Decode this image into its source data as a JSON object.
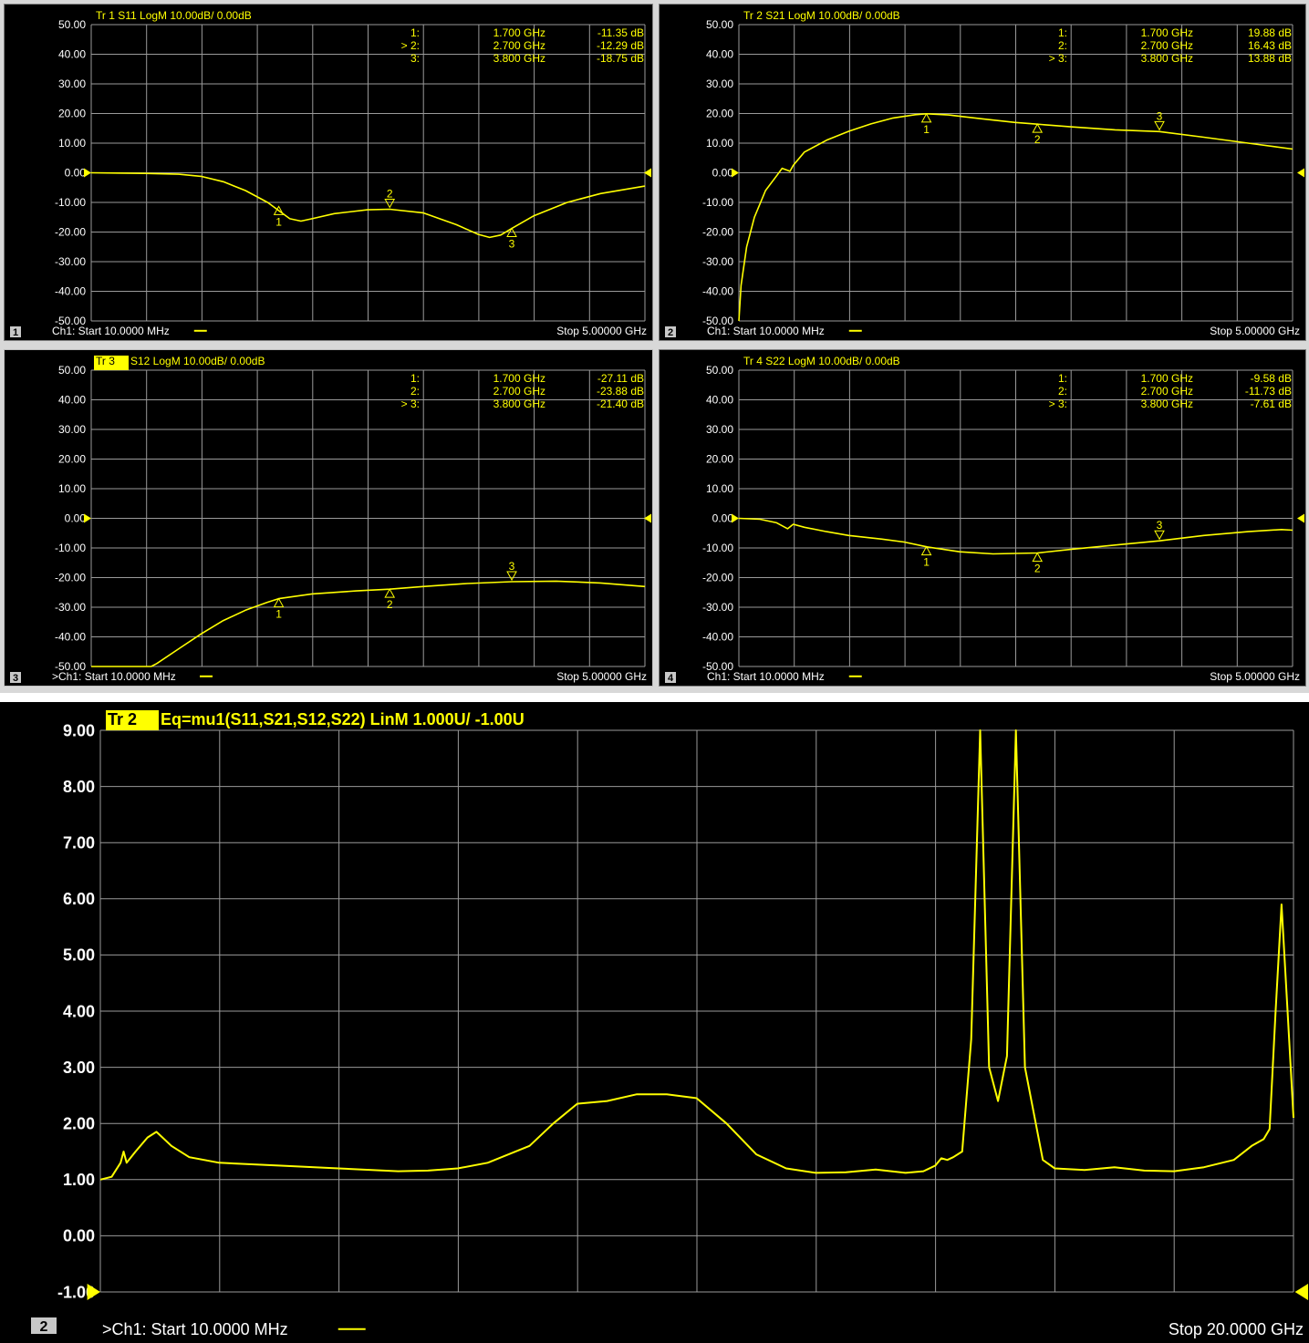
{
  "colors": {
    "trace": "#ffff00",
    "grid": "#9a9a9a",
    "background": "#000000",
    "text": "#ffffff",
    "panel_frame": "#d8d8d8"
  },
  "chart_data": [
    {
      "type": "line",
      "panel": "1",
      "title": "Tr 1  S11 LogM 10.00dB/  0.00dB",
      "footer_left": "Ch1:  Start  10.0000 MHz",
      "footer_right": "Stop  5.00000 GHz",
      "x_unit": "GHz",
      "xlim": [
        0.01,
        5.0
      ],
      "ylim": [
        -50,
        50
      ],
      "yticks": [
        "50.00",
        "40.00",
        "30.00",
        "20.00",
        "10.00",
        "0.00",
        "-10.00",
        "-20.00",
        "-30.00",
        "-40.00",
        "-50.00"
      ],
      "reference_level": 0,
      "markers": [
        {
          "label": "1:",
          "freq": "1.700 GHz",
          "value": "-11.35 dB",
          "x": 1.7,
          "y": -11.35,
          "active": false,
          "num": "1"
        },
        {
          "label": "> 2:",
          "freq": "2.700 GHz",
          "value": "-12.29 dB",
          "x": 2.7,
          "y": -12.29,
          "active": true,
          "num": "2"
        },
        {
          "label": "3:",
          "freq": "3.800 GHz",
          "value": "-18.75 dB",
          "x": 3.8,
          "y": -18.75,
          "active": false,
          "num": "3"
        }
      ],
      "x": [
        0.01,
        0.5,
        0.8,
        1.0,
        1.2,
        1.4,
        1.6,
        1.8,
        1.9,
        2.0,
        2.2,
        2.5,
        2.7,
        3.0,
        3.3,
        3.5,
        3.6,
        3.7,
        3.8,
        4.0,
        4.3,
        4.6,
        5.0
      ],
      "y": [
        0.0,
        -0.2,
        -0.5,
        -1.2,
        -3.0,
        -6.0,
        -10.0,
        -15.5,
        -16.3,
        -15.5,
        -13.8,
        -12.5,
        -12.3,
        -13.5,
        -17.5,
        -20.8,
        -21.8,
        -21.0,
        -18.8,
        -14.5,
        -10.0,
        -7.0,
        -4.5
      ]
    },
    {
      "type": "line",
      "panel": "2",
      "title": "Tr 2  S21 LogM 10.00dB/  0.00dB",
      "footer_left": "Ch1:  Start  10.0000 MHz",
      "footer_right": "Stop  5.00000 GHz",
      "x_unit": "GHz",
      "xlim": [
        0.01,
        5.0
      ],
      "ylim": [
        -50,
        50
      ],
      "yticks": [
        "50.00",
        "40.00",
        "30.00",
        "20.00",
        "10.00",
        "0.00",
        "-10.00",
        "-20.00",
        "-30.00",
        "-40.00",
        "-50.00"
      ],
      "reference_level": 0,
      "markers": [
        {
          "label": "1:",
          "freq": "1.700 GHz",
          "value": "19.88 dB",
          "x": 1.7,
          "y": 19.88,
          "active": false,
          "num": "1"
        },
        {
          "label": "2:",
          "freq": "2.700 GHz",
          "value": "16.43 dB",
          "x": 2.7,
          "y": 16.43,
          "active": false,
          "num": "2"
        },
        {
          "label": "> 3:",
          "freq": "3.800 GHz",
          "value": "13.88 dB",
          "x": 3.8,
          "y": 13.88,
          "active": true,
          "num": "3"
        }
      ],
      "x": [
        0.01,
        0.03,
        0.08,
        0.15,
        0.25,
        0.35,
        0.4,
        0.45,
        0.47,
        0.5,
        0.6,
        0.8,
        1.0,
        1.2,
        1.4,
        1.6,
        1.7,
        1.9,
        2.2,
        2.5,
        2.7,
        3.0,
        3.4,
        3.8,
        4.2,
        4.6,
        5.0
      ],
      "y": [
        -50.0,
        -38.0,
        -25.0,
        -15.0,
        -6.0,
        -1.0,
        1.5,
        0.8,
        0.5,
        2.5,
        7.0,
        11.0,
        14.0,
        16.5,
        18.5,
        19.6,
        19.9,
        19.5,
        18.2,
        17.0,
        16.4,
        15.5,
        14.5,
        13.9,
        12.0,
        10.0,
        8.0
      ]
    },
    {
      "type": "line",
      "panel": "3",
      "title": "Tr 3  S12 LogM 10.00dB/  0.00dB",
      "footer_left": ">Ch1:  Start  10.0000 MHz",
      "footer_right": "Stop  5.00000 GHz",
      "x_unit": "GHz",
      "xlim": [
        0.01,
        5.0
      ],
      "ylim": [
        -50,
        50
      ],
      "yticks": [
        "50.00",
        "40.00",
        "30.00",
        "20.00",
        "10.00",
        "0.00",
        "-10.00",
        "-20.00",
        "-30.00",
        "-40.00",
        "-50.00"
      ],
      "reference_level": 0,
      "markers": [
        {
          "label": "1:",
          "freq": "1.700 GHz",
          "value": "-27.11 dB",
          "x": 1.7,
          "y": -27.11,
          "active": false,
          "num": "1"
        },
        {
          "label": "2:",
          "freq": "2.700 GHz",
          "value": "-23.88 dB",
          "x": 2.7,
          "y": -23.88,
          "active": false,
          "num": "2"
        },
        {
          "label": "> 3:",
          "freq": "3.800 GHz",
          "value": "-21.40 dB",
          "x": 3.8,
          "y": -21.4,
          "active": true,
          "num": "3"
        }
      ],
      "x": [
        0.01,
        0.3,
        0.55,
        0.6,
        0.8,
        1.0,
        1.2,
        1.4,
        1.6,
        1.7,
        2.0,
        2.4,
        2.7,
        3.0,
        3.4,
        3.8,
        4.2,
        4.6,
        5.0
      ],
      "y": [
        -50.0,
        -50.0,
        -50.0,
        -49.0,
        -44.0,
        -39.0,
        -34.5,
        -31.0,
        -28.3,
        -27.1,
        -25.5,
        -24.5,
        -23.9,
        -23.0,
        -22.0,
        -21.4,
        -21.2,
        -21.8,
        -23.0
      ]
    },
    {
      "type": "line",
      "panel": "4",
      "title": "Tr 4  S22 LogM 10.00dB/  0.00dB",
      "footer_left": "Ch1:  Start  10.0000 MHz",
      "footer_right": "Stop  5.00000 GHz",
      "x_unit": "GHz",
      "xlim": [
        0.01,
        5.0
      ],
      "ylim": [
        -50,
        50
      ],
      "yticks": [
        "50.00",
        "40.00",
        "30.00",
        "20.00",
        "10.00",
        "0.00",
        "-10.00",
        "-20.00",
        "-30.00",
        "-40.00",
        "-50.00"
      ],
      "reference_level": 0,
      "markers": [
        {
          "label": "1:",
          "freq": "1.700 GHz",
          "value": "-9.58 dB",
          "x": 1.7,
          "y": -9.58,
          "active": false,
          "num": "1"
        },
        {
          "label": "2:",
          "freq": "2.700 GHz",
          "value": "-11.73 dB",
          "x": 2.7,
          "y": -11.73,
          "active": false,
          "num": "2"
        },
        {
          "label": "> 3:",
          "freq": "3.800 GHz",
          "value": "-7.61 dB",
          "x": 3.8,
          "y": -7.61,
          "active": true,
          "num": "3"
        }
      ],
      "x": [
        0.01,
        0.2,
        0.35,
        0.45,
        0.5,
        0.6,
        0.8,
        1.0,
        1.3,
        1.5,
        1.7,
        2.0,
        2.3,
        2.7,
        3.0,
        3.4,
        3.8,
        4.2,
        4.6,
        4.9,
        5.0
      ],
      "y": [
        0.0,
        -0.3,
        -1.5,
        -3.5,
        -2.0,
        -3.0,
        -4.5,
        -5.8,
        -7.0,
        -8.0,
        -9.6,
        -11.3,
        -12.0,
        -11.7,
        -10.5,
        -9.0,
        -7.6,
        -5.8,
        -4.5,
        -3.8,
        -4.0
      ]
    },
    {
      "type": "line",
      "panel": "2",
      "title": "Tr 2   Eq=mu1(S11,S21,S12,S22) LinM 1.000U/  -1.00U",
      "footer_left": ">Ch1:   Start   10.0000 MHz",
      "footer_right": "Stop  20.0000 GHz",
      "x_unit": "GHz",
      "xlim": [
        0.01,
        20.0
      ],
      "ylim": [
        -1,
        9
      ],
      "yticks": [
        "9.00",
        "8.00",
        "7.00",
        "6.00",
        "5.00",
        "4.00",
        "3.00",
        "2.00",
        "1.00",
        "0.00",
        "-1.00"
      ],
      "reference_level": -1,
      "x": [
        0.01,
        0.2,
        0.35,
        0.4,
        0.45,
        0.6,
        0.8,
        0.95,
        1.2,
        1.5,
        2.0,
        3.0,
        4.0,
        5.0,
        5.5,
        6.0,
        6.5,
        7.2,
        7.6,
        8.0,
        8.5,
        9.0,
        9.5,
        10.0,
        10.5,
        11.0,
        11.5,
        12.0,
        12.5,
        13.0,
        13.5,
        13.8,
        14.0,
        14.1,
        14.2,
        14.3,
        14.45,
        14.6,
        14.75,
        14.9,
        15.05,
        15.2,
        15.35,
        15.5,
        15.8,
        16.0,
        16.5,
        17.0,
        17.5,
        18.0,
        18.5,
        19.0,
        19.3,
        19.5,
        19.6,
        19.7,
        19.8,
        19.9,
        20.0
      ],
      "y": [
        1.0,
        1.05,
        1.3,
        1.5,
        1.3,
        1.5,
        1.75,
        1.85,
        1.6,
        1.4,
        1.3,
        1.25,
        1.2,
        1.15,
        1.16,
        1.2,
        1.3,
        1.6,
        2.0,
        2.35,
        2.4,
        2.52,
        2.52,
        2.45,
        2.0,
        1.45,
        1.2,
        1.12,
        1.13,
        1.18,
        1.12,
        1.15,
        1.25,
        1.38,
        1.35,
        1.4,
        1.5,
        3.5,
        9.0,
        3.0,
        2.4,
        3.2,
        9.0,
        3.0,
        1.35,
        1.2,
        1.17,
        1.22,
        1.16,
        1.15,
        1.22,
        1.35,
        1.6,
        1.72,
        1.9,
        4.0,
        5.9,
        4.0,
        2.1
      ]
    }
  ]
}
